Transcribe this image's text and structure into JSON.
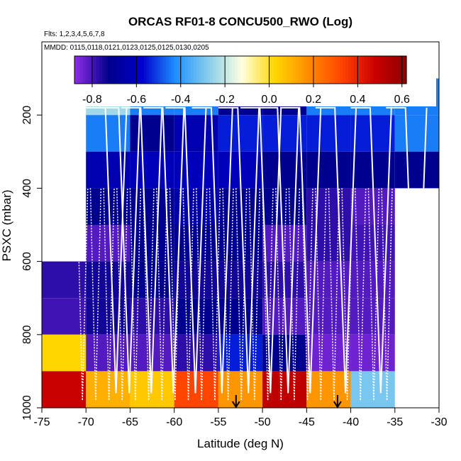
{
  "chart_data": {
    "type": "heatmap",
    "title": "ORCAS RF01-8 CONCU500_RWO (Log)",
    "subtitle_flights": "Flts: 1,2,3,4,5,6,7,8",
    "subtitle_dates": "MMDD: 0115,0118,0121,0123,0125,0125,0130,0205",
    "xlabel": "Latitude (deg N)",
    "ylabel": "PSXC (mbar)",
    "xlim": [
      -75,
      -30
    ],
    "ylim": [
      1000,
      0
    ],
    "xticks": [
      "-75",
      "-70",
      "-65",
      "-60",
      "-55",
      "-50",
      "-45",
      "-40",
      "-35",
      "-30"
    ],
    "yticks": [
      "200",
      "400",
      "600",
      "800",
      "1000"
    ],
    "colorbar": {
      "min": -0.88,
      "max": 0.62,
      "ticks": [
        "-0.8",
        "-0.6",
        "-0.4",
        "-0.2",
        "0.0",
        "0.2",
        "0.4",
        "0.6"
      ],
      "colors": [
        "#8a2be2",
        "#00008b",
        "#0000cd",
        "#1e90ff",
        "#87ceeb",
        "#ffffe0",
        "#ffd700",
        "#ff8c00",
        "#ff4500",
        "#cc0000",
        "#8b0000"
      ]
    },
    "lat_edges": [
      -75,
      -70,
      -65,
      -60,
      -55,
      -50,
      -45,
      -40,
      -35,
      -30
    ],
    "pressure_edges": [
      100,
      200,
      300,
      400,
      500,
      600,
      700,
      800,
      900,
      1000
    ],
    "cells": [
      [
        null,
        -0.25,
        -0.45,
        -0.45,
        -0.72,
        -0.72,
        -0.45,
        -0.45,
        -0.45
      ],
      [
        null,
        -0.45,
        -0.72,
        -0.65,
        -0.55,
        -0.55,
        -0.55,
        -0.55,
        -0.45
      ],
      [
        null,
        -0.65,
        -0.62,
        -0.62,
        -0.62,
        -0.72,
        -0.72,
        -0.72,
        -0.72
      ],
      [
        null,
        -0.72,
        -0.72,
        -0.66,
        -0.72,
        -0.72,
        -0.78,
        -0.82,
        null
      ],
      [
        null,
        -0.82,
        -0.72,
        -0.72,
        -0.72,
        -0.82,
        -0.78,
        -0.8,
        null
      ],
      [
        -0.78,
        -0.75,
        -0.72,
        -0.75,
        -0.75,
        -0.78,
        -0.82,
        -0.82,
        null
      ],
      [
        -0.8,
        -0.75,
        -0.78,
        -0.72,
        -0.72,
        -0.82,
        -0.82,
        -0.82,
        null
      ],
      [
        0.02,
        -0.82,
        -0.82,
        -0.78,
        -0.55,
        -0.72,
        -0.85,
        -0.85,
        null
      ],
      [
        0.48,
        0.1,
        0.05,
        0.32,
        0.15,
        0.5,
        0.15,
        -0.3,
        null
      ]
    ],
    "arrows_lat": [
      -53,
      -41.5
    ]
  }
}
